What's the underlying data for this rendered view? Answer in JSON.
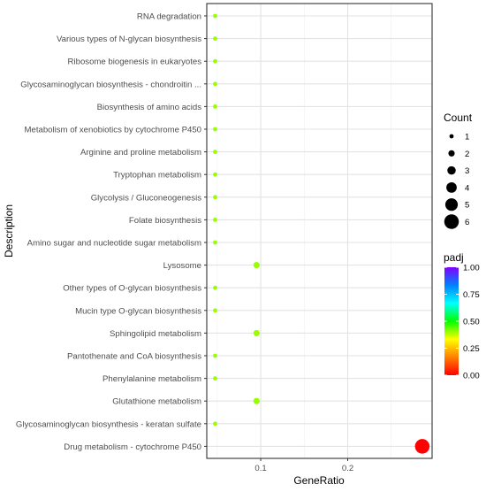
{
  "chart_data": {
    "type": "scatter",
    "title": "",
    "xlabel": "GeneRatio",
    "ylabel": "Description",
    "xlim": [
      0.038,
      0.297
    ],
    "xticks": [
      0.1,
      0.2
    ],
    "xtick_labels": [
      "0.1",
      "0.2"
    ],
    "grid": true,
    "legend_position": "right",
    "categories": [
      "RNA degradation",
      "Various types of N-glycan biosynthesis",
      "Ribosome biogenesis in eukaryotes",
      "Glycosaminoglycan biosynthesis - chondroitin ...",
      "Biosynthesis of amino acids",
      "Metabolism of xenobiotics by cytochrome P450",
      "Arginine and proline metabolism",
      "Tryptophan metabolism",
      "Glycolysis / Gluconeogenesis",
      "Folate biosynthesis",
      "Amino sugar and nucleotide sugar metabolism",
      "Lysosome",
      "Other types of O-glycan biosynthesis",
      "Mucin type O-glycan biosynthesis",
      "Sphingolipid metabolism",
      "Pantothenate and CoA biosynthesis",
      "Phenylalanine metabolism",
      "Glutathione metabolism",
      "Glycosaminoglycan biosynthesis - keratan sulfate",
      "Drug metabolism - cytochrome P450"
    ],
    "points": [
      {
        "description": "RNA degradation",
        "gene_ratio": 0.0476,
        "count": 1,
        "padj": 0.4
      },
      {
        "description": "Various types of N-glycan biosynthesis",
        "gene_ratio": 0.0476,
        "count": 1,
        "padj": 0.4
      },
      {
        "description": "Ribosome biogenesis in eukaryotes",
        "gene_ratio": 0.0476,
        "count": 1,
        "padj": 0.4
      },
      {
        "description": "Glycosaminoglycan biosynthesis - chondroitin ...",
        "gene_ratio": 0.0476,
        "count": 1,
        "padj": 0.4
      },
      {
        "description": "Biosynthesis of amino acids",
        "gene_ratio": 0.0476,
        "count": 1,
        "padj": 0.4
      },
      {
        "description": "Metabolism of xenobiotics by cytochrome P450",
        "gene_ratio": 0.0476,
        "count": 1,
        "padj": 0.4
      },
      {
        "description": "Arginine and proline metabolism",
        "gene_ratio": 0.0476,
        "count": 1,
        "padj": 0.4
      },
      {
        "description": "Tryptophan metabolism",
        "gene_ratio": 0.0476,
        "count": 1,
        "padj": 0.4
      },
      {
        "description": "Glycolysis / Gluconeogenesis",
        "gene_ratio": 0.0476,
        "count": 1,
        "padj": 0.4
      },
      {
        "description": "Folate biosynthesis",
        "gene_ratio": 0.0476,
        "count": 1,
        "padj": 0.4
      },
      {
        "description": "Amino sugar and nucleotide sugar metabolism",
        "gene_ratio": 0.0476,
        "count": 1,
        "padj": 0.4
      },
      {
        "description": "Lysosome",
        "gene_ratio": 0.0952,
        "count": 2,
        "padj": 0.4
      },
      {
        "description": "Other types of O-glycan biosynthesis",
        "gene_ratio": 0.0476,
        "count": 1,
        "padj": 0.4
      },
      {
        "description": "Mucin type O-glycan biosynthesis",
        "gene_ratio": 0.0476,
        "count": 1,
        "padj": 0.4
      },
      {
        "description": "Sphingolipid metabolism",
        "gene_ratio": 0.0952,
        "count": 2,
        "padj": 0.4
      },
      {
        "description": "Pantothenate and CoA biosynthesis",
        "gene_ratio": 0.0476,
        "count": 1,
        "padj": 0.4
      },
      {
        "description": "Phenylalanine metabolism",
        "gene_ratio": 0.0476,
        "count": 1,
        "padj": 0.4
      },
      {
        "description": "Glutathione metabolism",
        "gene_ratio": 0.0952,
        "count": 2,
        "padj": 0.4
      },
      {
        "description": "Glycosaminoglycan biosynthesis - keratan sulfate",
        "gene_ratio": 0.0476,
        "count": 1,
        "padj": 0.4
      },
      {
        "description": "Drug metabolism - cytochrome P450",
        "gene_ratio": 0.2857,
        "count": 6,
        "padj": 0.0
      }
    ],
    "size_legend": {
      "title": "Count",
      "values": [
        1,
        2,
        3,
        4,
        5,
        6
      ],
      "labels": [
        "1",
        "2",
        "3",
        "4",
        "5",
        "6"
      ]
    },
    "color_legend": {
      "title": "padj",
      "range": [
        0.0,
        1.0
      ],
      "ticks": [
        "1.00",
        "0.75",
        "0.50",
        "0.25",
        "0.00"
      ],
      "colors": [
        "#ff0000",
        "#ff8000",
        "#ffff00",
        "#00ff00",
        "#00ffff",
        "#0080ff",
        "#8000ff"
      ]
    }
  }
}
